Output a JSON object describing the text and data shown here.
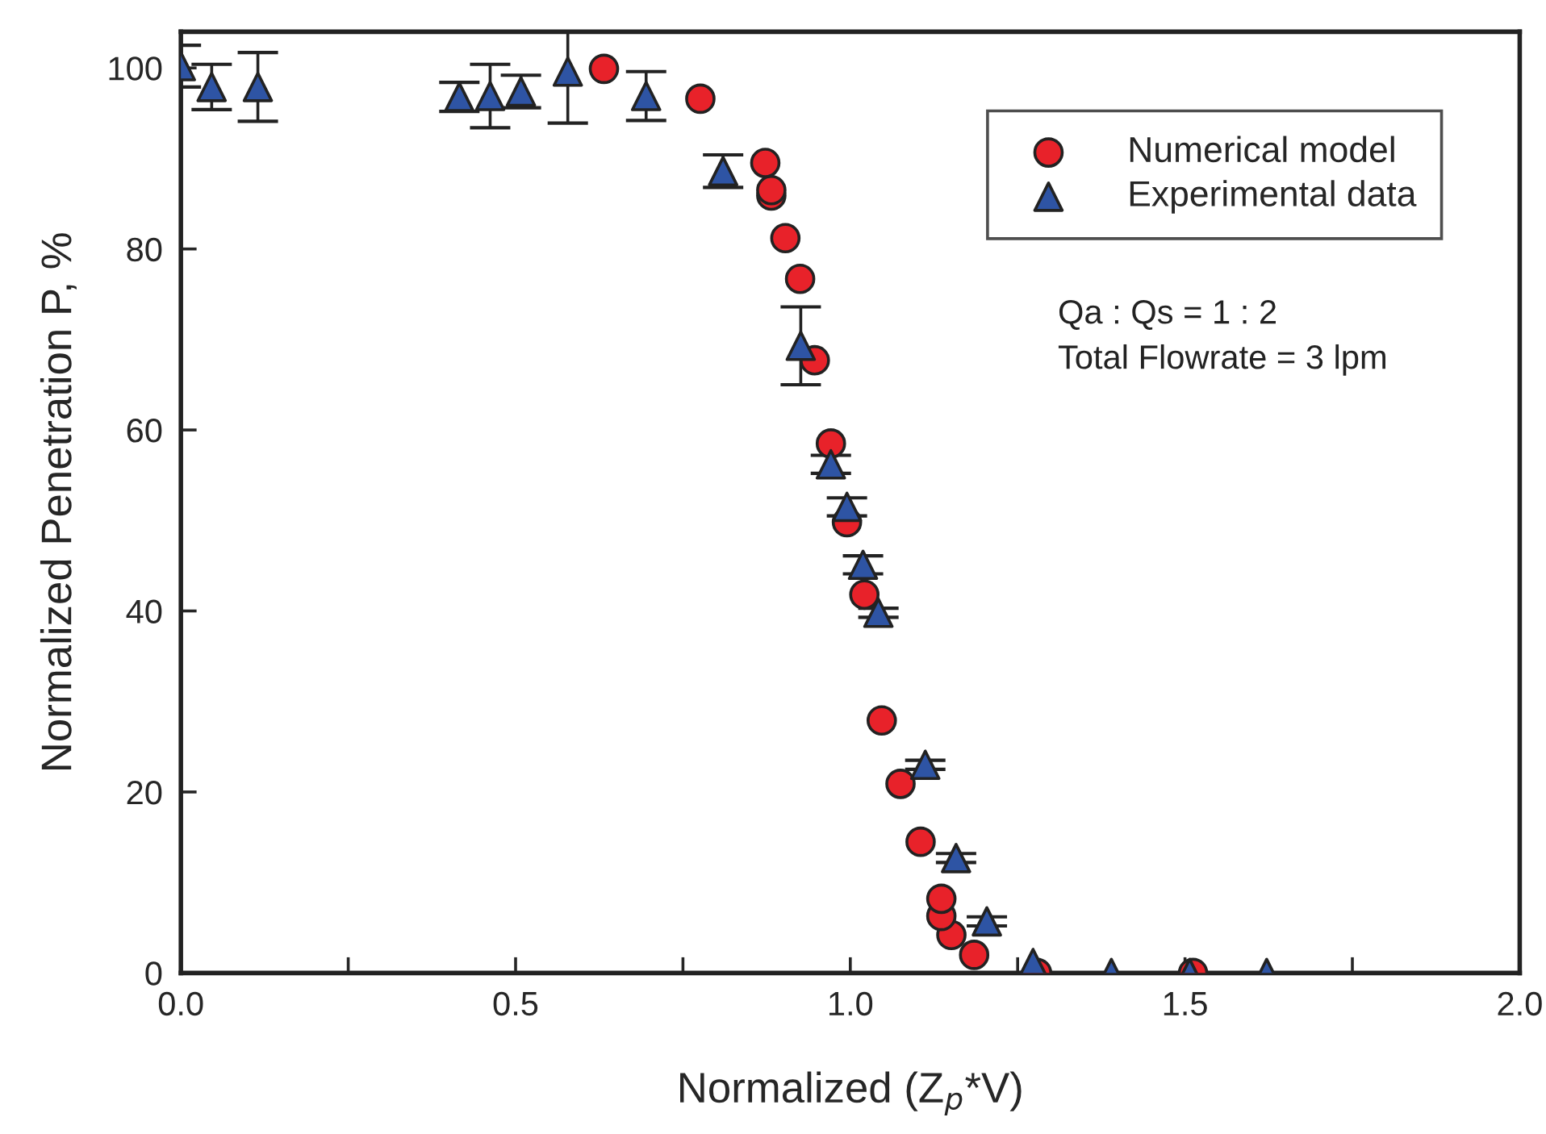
{
  "chart_data": {
    "type": "scatter",
    "xlabel": "Normalized (Z$_{p}$*V)",
    "ylabel": "Normalized Penetration P, %",
    "xlim": [
      0,
      2
    ],
    "ylim": [
      0,
      104
    ],
    "xticks": [
      {
        "value": 0,
        "label": "0.0"
      },
      {
        "value": 0.25,
        "label": null
      },
      {
        "value": 0.5,
        "label": "0.5"
      },
      {
        "value": 0.75,
        "label": null
      },
      {
        "value": 1,
        "label": "1.0"
      },
      {
        "value": 1.25,
        "label": null
      },
      {
        "value": 1.5,
        "label": "1.5"
      },
      {
        "value": 1.75,
        "label": null
      },
      {
        "value": 2,
        "label": "2.0"
      }
    ],
    "yticks": [
      0,
      20,
      40,
      60,
      80,
      100
    ],
    "grid": false,
    "legend": "top right",
    "annotations": [
      "Qa : Qs = 1 : 2",
      "Total Flowrate = 3 lpm"
    ],
    "series": [
      {
        "name": "Numerical model",
        "color": "#e8222a",
        "marker": "circle",
        "x": [
          0.632,
          0.776,
          0.873,
          0.882,
          0.882,
          0.903,
          0.925,
          0.947,
          0.971,
          0.995,
          1.021,
          1.047,
          1.075,
          1.105,
          1.136,
          1.136,
          1.151,
          1.185,
          1.279,
          1.512
        ],
        "values": [
          99.9,
          96.6,
          89.5,
          86.5,
          85.9,
          81.2,
          76.7,
          67.7,
          58.5,
          49.8,
          41.8,
          27.9,
          20.9,
          14.5,
          8.2,
          6.3,
          4.2,
          2.0,
          0,
          0
        ]
      },
      {
        "name": "Experimental data",
        "color": "#2e54a4",
        "marker": "triangle",
        "x": [
          0.0,
          0.046,
          0.115,
          0.416,
          0.462,
          0.508,
          0.578,
          0.695,
          0.81,
          0.926,
          0.971,
          0.995,
          1.019,
          1.042,
          1.112,
          1.158,
          1.204,
          1.273,
          1.39,
          1.507,
          1.622
        ],
        "values": [
          100.2,
          97.9,
          97.9,
          96.8,
          96.9,
          97.4,
          99.6,
          96.9,
          88.6,
          69.3,
          56.2,
          51.5,
          45.1,
          39.8,
          23.0,
          12.7,
          5.7,
          1.1,
          0,
          0,
          0
        ],
        "errors": [
          2.3,
          2.5,
          3.8,
          1.6,
          3.5,
          1.8,
          5.7,
          2.7,
          1.8,
          4.3,
          1.0,
          1.0,
          1.0,
          0.5,
          0.5,
          0.5,
          0.5,
          null,
          null,
          null,
          null
        ]
      }
    ]
  }
}
